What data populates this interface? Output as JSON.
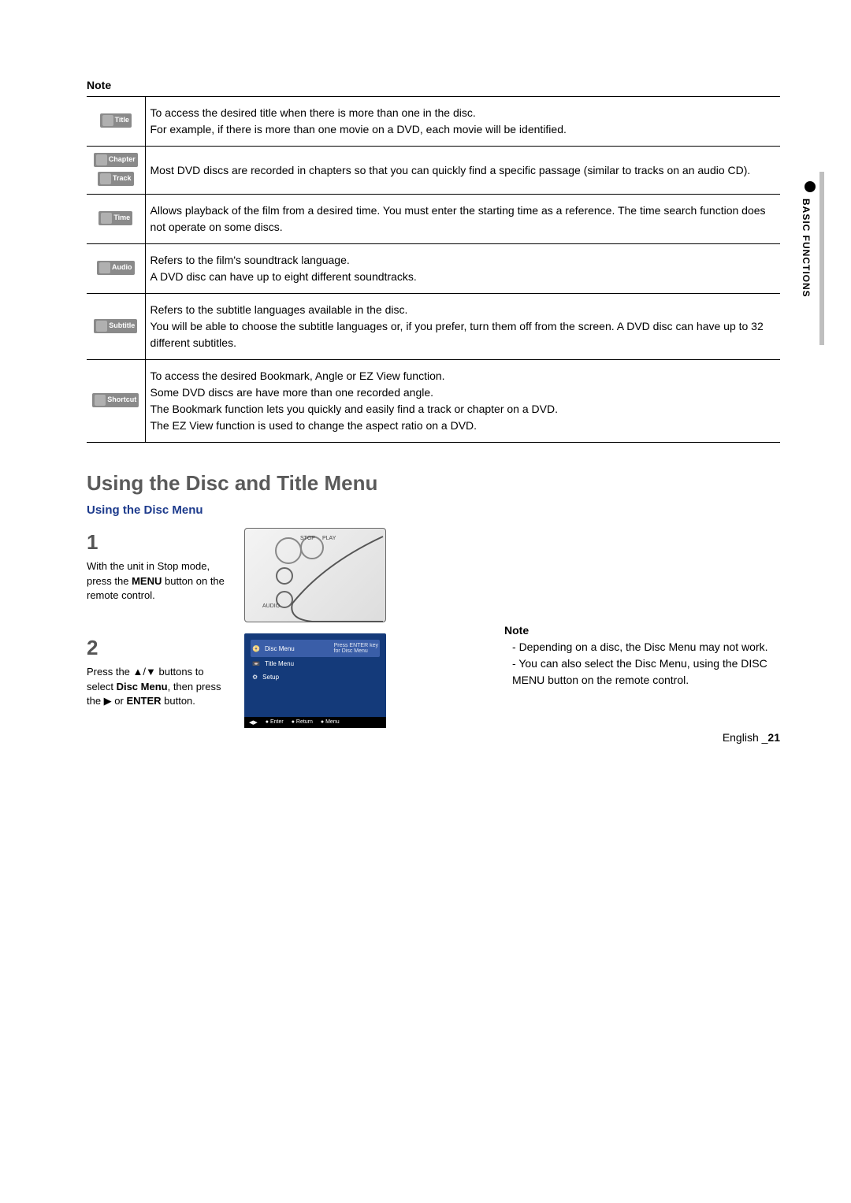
{
  "note_label": "Note",
  "table": {
    "rows": [
      {
        "icons": [
          {
            "name": "title-icon",
            "label": "Title"
          }
        ],
        "text": "To access the desired title when there is more than one in the disc.\nFor example, if there is more than one movie on a DVD, each movie will be identified."
      },
      {
        "icons": [
          {
            "name": "chapter-icon",
            "label": "Chapter"
          },
          {
            "name": "track-icon",
            "label": "Track"
          }
        ],
        "text": "Most DVD discs are recorded in chapters so that you can quickly find a specific passage (similar to tracks on an audio CD)."
      },
      {
        "icons": [
          {
            "name": "time-icon",
            "label": "Time"
          }
        ],
        "text": "Allows playback of the film from a desired time. You must enter the starting time as a reference. The time search function does not operate on some discs."
      },
      {
        "icons": [
          {
            "name": "audio-icon",
            "label": "Audio"
          }
        ],
        "text": "Refers to the film's soundtrack language.\nA DVD disc can have up to eight different soundtracks."
      },
      {
        "icons": [
          {
            "name": "subtitle-icon",
            "label": "Subtitle"
          }
        ],
        "text": "Refers to the subtitle languages available in the disc.\nYou will be able to choose the subtitle languages or, if you prefer, turn them off from the screen. A DVD disc can have up to 32 different subtitles."
      },
      {
        "icons": [
          {
            "name": "shortcut-icon",
            "label": "Shortcut"
          }
        ],
        "text": "To access the desired Bookmark, Angle or EZ View  function.\nSome DVD discs are have more than one recorded angle.\nThe Bookmark function lets you quickly and easily find a track or chapter on a DVD.\nThe EZ View function is used to change the aspect ratio on a DVD."
      }
    ]
  },
  "section_title": "Using the Disc and Title Menu",
  "subsection_title": "Using the Disc Menu",
  "steps": [
    {
      "num": "1",
      "text_pre": "With the unit in Stop mode, press the ",
      "bold1": "MENU",
      "text_post": " button on the remote control."
    },
    {
      "num": "2",
      "text_pre": "Press the ▲/▼ buttons to select ",
      "bold1": "Disc Menu",
      "text_mid": ", then press the ▶ or ",
      "bold2": "ENTER",
      "text_post": " button."
    }
  ],
  "menu_preview": {
    "items": [
      "Disc Menu",
      "Title Menu",
      "Setup"
    ],
    "hint1": "Press ENTER key",
    "hint2": "for Disc Menu",
    "footer": [
      "Enter",
      "Return",
      "Menu"
    ]
  },
  "side_note": {
    "heading": "Note",
    "items": [
      "Depending on a disc, the Disc Menu may not work.",
      "You can also select the Disc Menu, using the DISC MENU button on the remote control."
    ]
  },
  "tab_label": "BASIC FUNCTIONS",
  "footer_lang": "English",
  "footer_page": "21"
}
